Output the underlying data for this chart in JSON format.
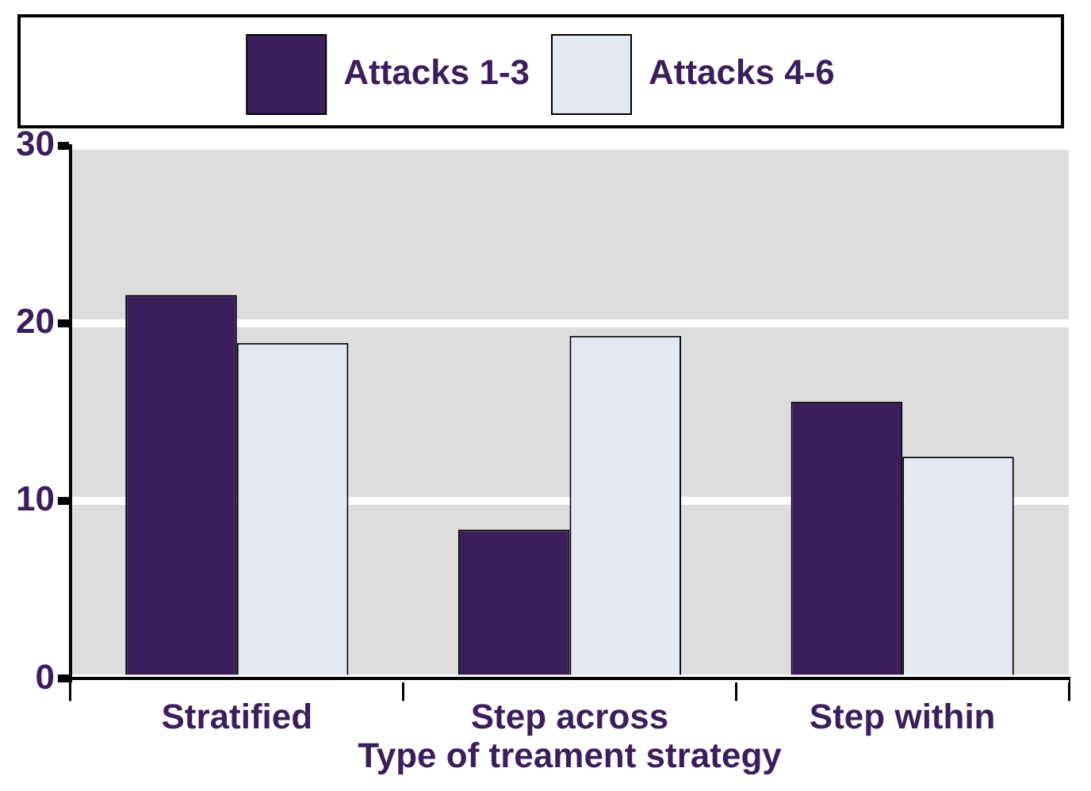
{
  "chart_data": {
    "type": "bar",
    "xlabel": "Type of treament strategy",
    "categories": [
      "Stratified",
      "Step across",
      "Step within"
    ],
    "series": [
      {
        "name": "Attacks 1-3",
        "color": "#3b1e5c",
        "values": [
          21.6,
          8.4,
          15.6
        ]
      },
      {
        "name": "Attacks 4-6",
        "color": "#e4e8f4",
        "values": [
          18.9,
          19.3,
          12.5
        ]
      }
    ],
    "ylim": [
      0,
      30
    ],
    "yticks": [
      0,
      10,
      20,
      30
    ],
    "grid": "y",
    "legend": "top"
  }
}
